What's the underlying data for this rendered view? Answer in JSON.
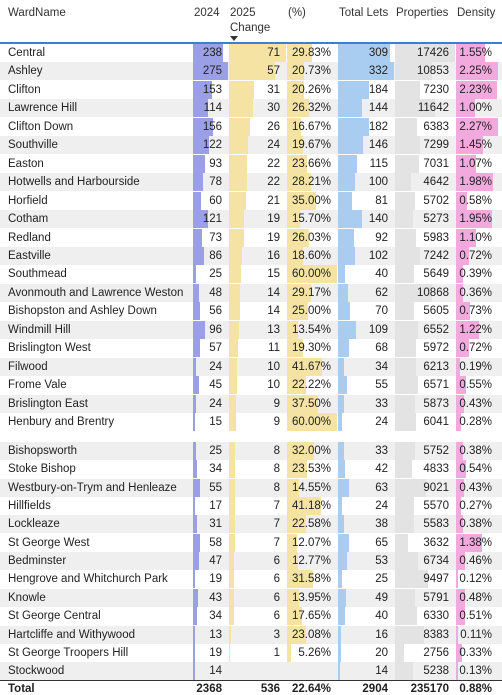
{
  "table": {
    "columns": [
      "WardName",
      "2024",
      "2025 Change",
      "(%)",
      "Total Lets",
      "Properties",
      "Density"
    ],
    "rows": [
      [
        "Central",
        "238",
        "71",
        "29.83%",
        "309",
        "17426",
        "1.55%"
      ],
      [
        "Ashley",
        "275",
        "57",
        "20.73%",
        "332",
        "10853",
        "2.25%"
      ],
      [
        "Clifton",
        "153",
        "31",
        "20.26%",
        "184",
        "7230",
        "2.23%"
      ],
      [
        "Lawrence Hill",
        "114",
        "30",
        "26.32%",
        "144",
        "11642",
        "1.00%"
      ],
      [
        "Clifton Down",
        "156",
        "26",
        "16.67%",
        "182",
        "6383",
        "2.27%"
      ],
      [
        "Southville",
        "122",
        "24",
        "19.67%",
        "146",
        "7299",
        "1.45%"
      ],
      [
        "Easton",
        "93",
        "22",
        "23.66%",
        "115",
        "7031",
        "1.07%"
      ],
      [
        "Hotwells and Harbourside",
        "78",
        "22",
        "28.21%",
        "100",
        "4642",
        "1.98%"
      ],
      [
        "Horfield",
        "60",
        "21",
        "35.00%",
        "81",
        "5702",
        "0.58%"
      ],
      [
        "Cotham",
        "121",
        "19",
        "15.70%",
        "140",
        "5273",
        "1.95%"
      ],
      [
        "Redland",
        "73",
        "19",
        "26.03%",
        "92",
        "5983",
        "1.10%"
      ],
      [
        "Eastville",
        "86",
        "16",
        "18.60%",
        "102",
        "7242",
        "0.72%"
      ],
      [
        "Southmead",
        "25",
        "15",
        "60.00%",
        "40",
        "5649",
        "0.39%"
      ],
      [
        "Avonmouth and Lawrence Weston",
        "48",
        "14",
        "29.17%",
        "62",
        "10868",
        "0.36%"
      ],
      [
        "Bishopston and Ashley Down",
        "56",
        "14",
        "25.00%",
        "70",
        "5605",
        "0.73%"
      ],
      [
        "Windmill Hill",
        "96",
        "13",
        "13.54%",
        "109",
        "6552",
        "1.22%"
      ],
      [
        "Brislington West",
        "57",
        "11",
        "19.30%",
        "68",
        "5972",
        "0.72%"
      ],
      [
        "Filwood",
        "24",
        "10",
        "41.67%",
        "34",
        "6213",
        "0.19%"
      ],
      [
        "Frome Vale",
        "45",
        "10",
        "22.22%",
        "55",
        "6571",
        "0.55%"
      ],
      [
        "Brislington East",
        "24",
        "9",
        "37.50%",
        "33",
        "5873",
        "0.43%"
      ],
      [
        "Henbury and Brentry",
        "15",
        "9",
        "60.00%",
        "24",
        "6041",
        "0.28%"
      ],
      [
        "Bishopsworth",
        "25",
        "8",
        "32.00%",
        "33",
        "5752",
        "0.38%"
      ],
      [
        "Stoke Bishop",
        "34",
        "8",
        "23.53%",
        "42",
        "4833",
        "0.54%"
      ],
      [
        "Westbury-on-Trym and Henleaze",
        "55",
        "8",
        "14.55%",
        "63",
        "9021",
        "0.43%"
      ],
      [
        "Hillfields",
        "17",
        "7",
        "41.18%",
        "24",
        "5570",
        "0.27%"
      ],
      [
        "Lockleaze",
        "31",
        "7",
        "22.58%",
        "38",
        "5583",
        "0.38%"
      ],
      [
        "St George West",
        "58",
        "7",
        "12.07%",
        "65",
        "3632",
        "1.38%"
      ],
      [
        "Bedminster",
        "47",
        "6",
        "12.77%",
        "53",
        "6734",
        "0.46%"
      ],
      [
        "Hengrove and Whitchurch Park",
        "19",
        "6",
        "31.58%",
        "25",
        "9497",
        "0.12%"
      ],
      [
        "Knowle",
        "43",
        "6",
        "13.95%",
        "49",
        "5791",
        "0.48%"
      ],
      [
        "St George Central",
        "34",
        "6",
        "17.65%",
        "40",
        "6330",
        "0.51%"
      ],
      [
        "Hartcliffe and Withywood",
        "13",
        "3",
        "23.08%",
        "16",
        "8383",
        "0.11%"
      ],
      [
        "St George Troopers Hill",
        "19",
        "1",
        "5.26%",
        "20",
        "2756",
        "0.33%"
      ],
      [
        "Stockwood",
        "14",
        null,
        null,
        "14",
        "5238",
        "0.13%"
      ]
    ],
    "total": [
      "Total",
      "2368",
      "536",
      "22.64%",
      "2904",
      "235170",
      "0.88%"
    ]
  }
}
